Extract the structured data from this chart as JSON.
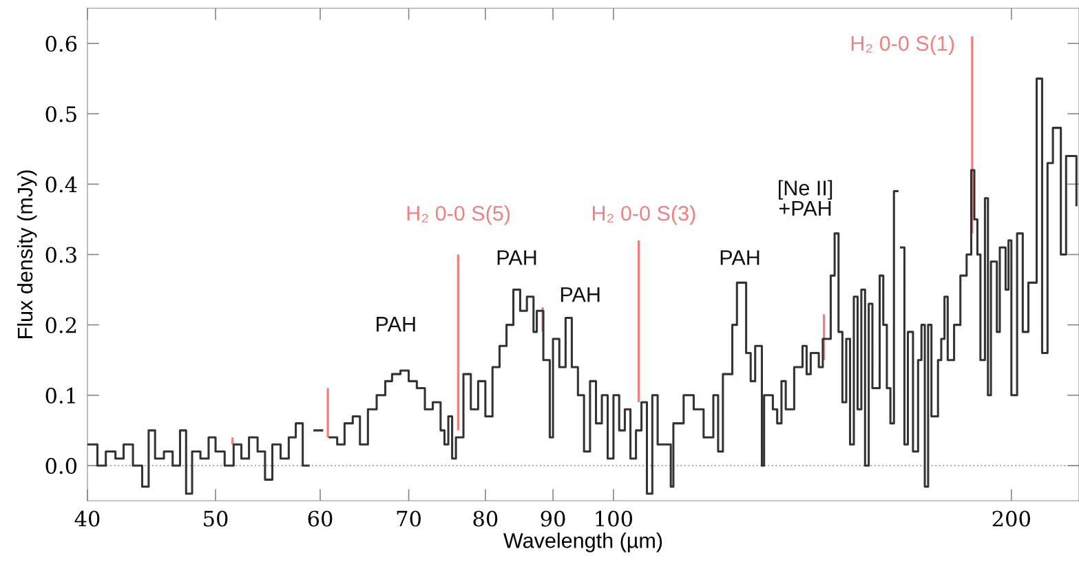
{
  "chart_data": {
    "type": "step",
    "xlabel": "Wavelength (µm)",
    "ylabel": "Flux density (mJy)",
    "log": "x",
    "grid": false,
    "legend": false,
    "xlim": [
      40,
      225
    ],
    "ylim": [
      -0.05,
      0.65
    ],
    "xticks": [
      40,
      50,
      60,
      70,
      80,
      90,
      100,
      200
    ],
    "yticks": [
      {
        "value": 0,
        "label": "0.0"
      },
      0.1,
      0.2,
      0.3,
      0.4,
      0.5,
      0.6
    ],
    "ref_lines": [
      {
        "axis": "y",
        "value": 0,
        "color": "#aaaaaa",
        "line_style": "dotted"
      }
    ],
    "series": [
      {
        "type": "bar",
        "color": "#f08080",
        "x": [
          51.5,
          60.8,
          76.3,
          88.4,
          104.5,
          144.3,
          186.8
        ],
        "base": [
          0.03,
          0.04,
          0.05,
          0.19,
          0.09,
          0.15,
          0.33
        ],
        "values": [
          0.01,
          0.07,
          0.25,
          0.035,
          0.23,
          0.065,
          0.28
        ]
      },
      {
        "color": "#333333",
        "x": [
          40,
          40.7,
          41.3,
          42,
          42.6,
          43.3,
          44,
          44.5,
          45,
          45.7,
          46.4,
          47,
          47.5,
          48,
          48.7,
          49.4,
          50,
          50.8,
          51.6,
          52.3,
          53,
          53.8,
          54.5,
          55.2,
          56,
          56.8,
          57.5,
          58.2,
          58.8,
          59.4,
          60.2,
          61,
          61.8,
          62.6,
          63.5,
          64.3,
          65.2,
          66.2,
          67.2,
          68,
          69,
          70,
          71,
          72,
          73,
          74,
          74.5,
          75,
          75.5,
          76,
          77,
          78,
          79,
          80,
          81,
          82,
          83,
          84,
          85,
          86,
          87,
          87.5,
          88.5,
          89.5,
          90,
          91,
          92,
          93,
          94,
          95,
          96,
          97,
          98,
          99,
          100,
          101,
          102,
          103,
          104,
          105,
          106,
          107,
          108,
          110.5,
          111,
          113,
          115,
          117,
          119,
          120,
          121,
          123,
          124,
          126,
          127,
          128,
          129.5,
          130,
          132,
          133,
          134,
          135,
          137,
          139,
          140,
          141,
          143,
          144,
          146,
          147,
          148,
          149,
          150,
          151,
          152,
          153,
          154,
          155,
          156,
          157,
          159,
          160,
          161,
          162,
          163,
          164,
          165,
          166,
          167,
          168.5,
          170,
          171,
          172,
          173,
          174,
          176,
          177,
          178,
          179,
          181,
          183,
          185,
          186.5,
          187.5,
          188.5,
          189.5,
          191,
          192,
          193,
          195,
          196,
          198,
          199,
          200,
          202,
          204,
          206,
          209,
          211,
          213,
          215,
          218,
          220,
          224
        ],
        "values": [
          0.03,
          0.0,
          0.02,
          0.01,
          0.03,
          0.0,
          -0.03,
          0.05,
          0.01,
          0.02,
          0.0,
          0.05,
          -0.04,
          0.02,
          0.01,
          0.04,
          0.02,
          0.0,
          0.03,
          0.01,
          0.04,
          0.02,
          -0.02,
          0.03,
          0.01,
          0.04,
          0.06,
          0.0,
          null,
          0.05,
          null,
          0.04,
          0.03,
          0.06,
          0.07,
          0.03,
          0.08,
          0.1,
          0.12,
          0.13,
          0.135,
          0.12,
          0.11,
          0.08,
          0.09,
          0.05,
          0.03,
          0.07,
          0.01,
          0.04,
          0.13,
          0.08,
          0.12,
          0.07,
          0.14,
          0.17,
          0.2,
          0.25,
          0.22,
          0.24,
          0.19,
          0.22,
          0.15,
          0.04,
          0.18,
          0.14,
          0.21,
          0.14,
          0.1,
          0.02,
          0.12,
          0.06,
          0.1,
          0.01,
          0.1,
          0.05,
          0.08,
          0.01,
          0.05,
          0.09,
          -0.04,
          0.1,
          0.03,
          -0.03,
          0.06,
          0.1,
          0.08,
          0.04,
          0.1,
          0.02,
          0.13,
          0.2,
          0.26,
          0.16,
          0.12,
          0.17,
          0.0,
          0.1,
          0.08,
          0.06,
          0.12,
          0.08,
          0.14,
          0.17,
          0.13,
          0.16,
          0.14,
          0.18,
          0.27,
          0.33,
          0.19,
          0.09,
          0.18,
          0.03,
          0.24,
          0.08,
          0.25,
          0.0,
          0.23,
          0.11,
          0.27,
          0.2,
          0.11,
          0.06,
          0.39,
          null,
          0.31,
          0.03,
          0.19,
          0.02,
          0.15,
          0.2,
          -0.03,
          0.2,
          0.07,
          0.15,
          0.18,
          0.24,
          0.15,
          0.2,
          0.27,
          0.3,
          0.42,
          0.35,
          0.3,
          0.15,
          0.38,
          0.1,
          0.29,
          0.19,
          0.31,
          0.25,
          0.32,
          0.1,
          0.33,
          0.19,
          0.26,
          0.55,
          0.16,
          0.43,
          0.48,
          0.3,
          0.44,
          0.37
        ]
      }
    ],
    "annotations": [
      "PAH",
      "H₂ 0-0 S(5)",
      "PAH",
      "PAH",
      "H₂ 0-0 S(3)",
      "PAH",
      "[Ne II]\n+PAH",
      "H₂ 0-0 S(1)"
    ]
  }
}
